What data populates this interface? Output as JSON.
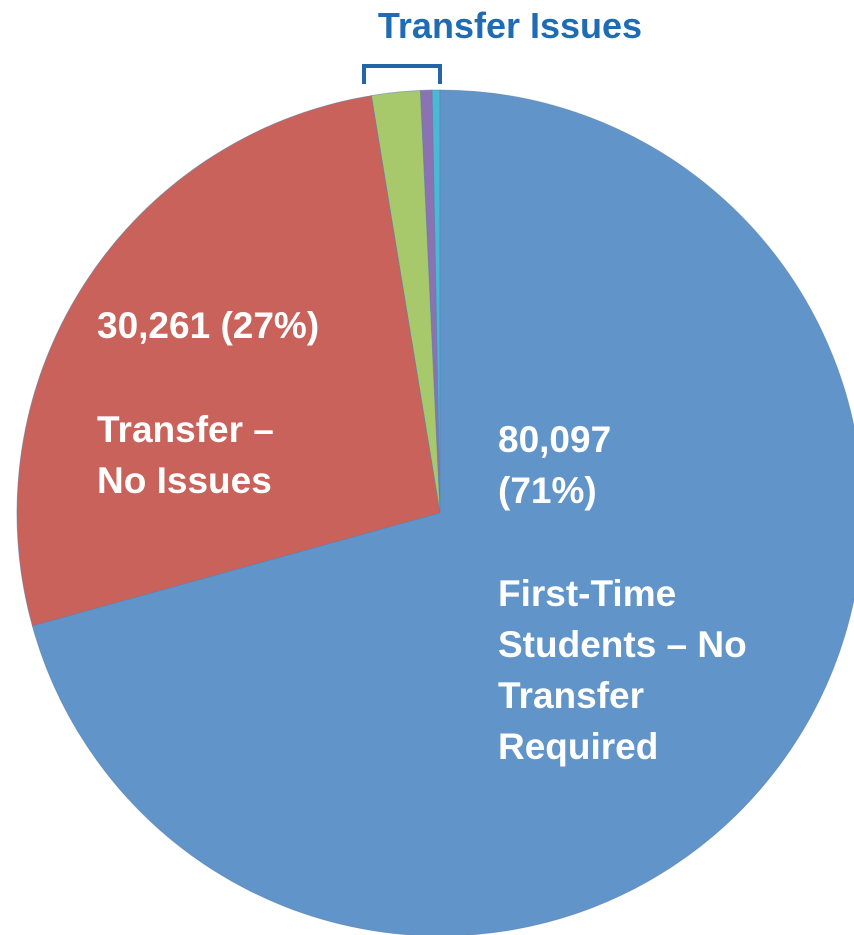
{
  "chart_data": {
    "type": "pie",
    "annotation": "Transfer Issues",
    "categories": [
      "First-Time Students – No Transfer Required",
      "Transfer – No Issues",
      null,
      null,
      null
    ],
    "values": [
      80097,
      30261,
      2100,
      500,
      340
    ],
    "value_labels": [
      "80,097 (71%)",
      "30,261 (27%)",
      null,
      null,
      null
    ],
    "colors": [
      "#6194c8",
      "#c9625a",
      "#a8c96b",
      "#8b72b3",
      "#4bb8d6"
    ],
    "start_angle": 0,
    "direction": "clockwise"
  }
}
